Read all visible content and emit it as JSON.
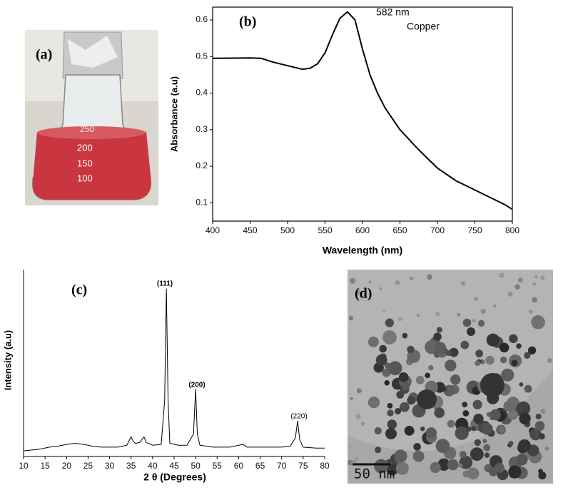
{
  "panels": {
    "a": {
      "label": "(a)",
      "markings": [
        "250",
        "200",
        "150",
        "100"
      ]
    },
    "d": {
      "label": "(d)",
      "scale_bar": "50 nm"
    }
  },
  "chart_data": [
    {
      "type": "line",
      "panel_label": "(b)",
      "x_label": "Wavelength (nm)",
      "y_label": "Absorbance (a.u)",
      "annotations": [
        "582 nm",
        "Copper"
      ],
      "color": "#000000",
      "x": [
        400,
        450,
        465,
        480,
        500,
        520,
        530,
        540,
        550,
        560,
        570,
        580,
        590,
        600,
        610,
        620,
        630,
        650,
        675,
        700,
        725,
        750,
        775,
        790,
        800
      ],
      "values": [
        0.495,
        0.496,
        0.495,
        0.485,
        0.475,
        0.465,
        0.468,
        0.48,
        0.51,
        0.56,
        0.605,
        0.622,
        0.6,
        0.52,
        0.45,
        0.4,
        0.36,
        0.3,
        0.245,
        0.195,
        0.16,
        0.135,
        0.11,
        0.095,
        0.082
      ],
      "xlim": [
        400,
        800
      ],
      "xticks": [
        400,
        450,
        500,
        550,
        600,
        650,
        700,
        750,
        800
      ],
      "ylim": [
        0.05,
        0.635
      ],
      "yticks": [
        0.1,
        0.2,
        0.3,
        0.4,
        0.5,
        0.6
      ]
    },
    {
      "type": "line",
      "panel_label": "(c)",
      "x_label": "2 θ (Degrees)",
      "y_label": "Intensity (a.u)",
      "annotations": [
        "(111)",
        "(200)",
        "(220)"
      ],
      "color": "#000000",
      "x": [
        10,
        12,
        14,
        16,
        18,
        20,
        22,
        24,
        26,
        28,
        30,
        32,
        34,
        35,
        35.5,
        36,
        37,
        38,
        38.5,
        40,
        42,
        42.8,
        43.2,
        43.6,
        44,
        46,
        48,
        49.5,
        50,
        50.4,
        51,
        54,
        58,
        61,
        62,
        66,
        70,
        72,
        73.2,
        73.7,
        74.2,
        75,
        78,
        80
      ],
      "values": [
        3,
        3.5,
        4,
        5,
        5.5,
        6.5,
        7,
        6.5,
        5.5,
        5,
        5,
        5,
        6,
        10.5,
        8,
        7,
        7.5,
        10.5,
        7.5,
        6,
        6.5,
        30,
        89.7,
        30,
        7,
        6,
        6,
        12,
        36,
        12,
        6,
        5,
        5,
        6.5,
        5,
        5,
        5,
        5.5,
        10,
        19,
        9,
        5,
        4.5,
        4.5
      ],
      "xlim": [
        10,
        80
      ],
      "xticks": [
        10,
        15,
        20,
        25,
        30,
        35,
        40,
        45,
        50,
        55,
        60,
        65,
        70,
        75,
        80
      ],
      "ylim": [
        0,
        100
      ]
    }
  ]
}
